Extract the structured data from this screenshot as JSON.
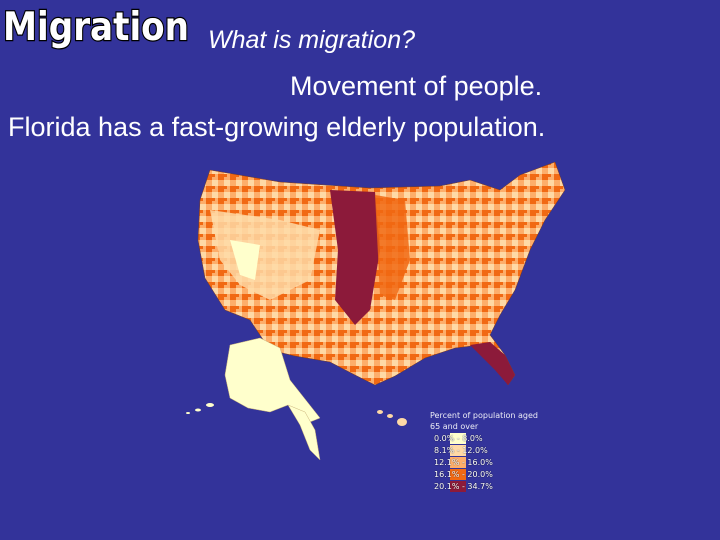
{
  "slide": {
    "title": "Migration",
    "lines": [
      "What is migration?",
      "Movement of people.",
      "Florida has a fast-growing elderly population."
    ]
  },
  "map": {
    "legend_title": "Percent of population aged 65 and over",
    "legend_items": [
      {
        "label": "0.0% - 8.0%",
        "color": "#ffffcc"
      },
      {
        "label": "8.1% - 12.0%",
        "color": "#fed9a6"
      },
      {
        "label": "12.1% - 16.0%",
        "color": "#fdae6b"
      },
      {
        "label": "16.1% - 20.0%",
        "color": "#f16913"
      },
      {
        "label": "20.1% - 34.7%",
        "color": "#8c1a3a"
      }
    ]
  }
}
